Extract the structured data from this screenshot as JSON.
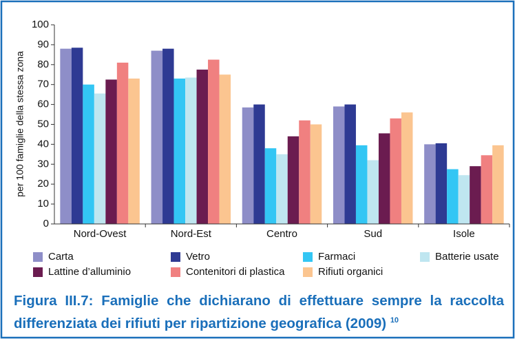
{
  "chart_data": {
    "type": "bar",
    "y_label": "per 100 famiglie della stessa zona",
    "categories": [
      "Nord-Ovest",
      "Nord-Est",
      "Centro",
      "Sud",
      "Isole"
    ],
    "series": [
      {
        "name": "Carta",
        "color": "#8e8ec8",
        "values": [
          88,
          87,
          58.5,
          59,
          40
        ]
      },
      {
        "name": "Vetro",
        "color": "#2e3a93",
        "values": [
          88.5,
          88,
          60,
          60,
          40.5
        ]
      },
      {
        "name": "Farmaci",
        "color": "#33c6f4",
        "values": [
          70,
          73,
          38,
          39.5,
          27.5
        ]
      },
      {
        "name": "Batterie usate",
        "color": "#bfe6f0",
        "values": [
          65.5,
          73.5,
          35,
          32,
          24.5
        ]
      },
      {
        "name": "Lattine d’alluminio",
        "color": "#6b1c50",
        "values": [
          72.5,
          77.5,
          44,
          45.5,
          29
        ]
      },
      {
        "name": "Contenitori di plastica",
        "color": "#f08080",
        "values": [
          81,
          82.5,
          52,
          53,
          34.5
        ]
      },
      {
        "name": "Rifiuti organici",
        "color": "#fbc590",
        "values": [
          73,
          75,
          50,
          56,
          39.5
        ]
      }
    ],
    "ylim": [
      0,
      100
    ],
    "yticks": [
      0,
      10,
      20,
      30,
      40,
      50,
      60,
      70,
      80,
      90,
      100
    ],
    "caption": "Figura III.7: Famiglie che dichiarano di effettuare sempre la raccolta differenziata dei rifiuti per ripartizione geografica (2009)",
    "footnote": "10"
  }
}
